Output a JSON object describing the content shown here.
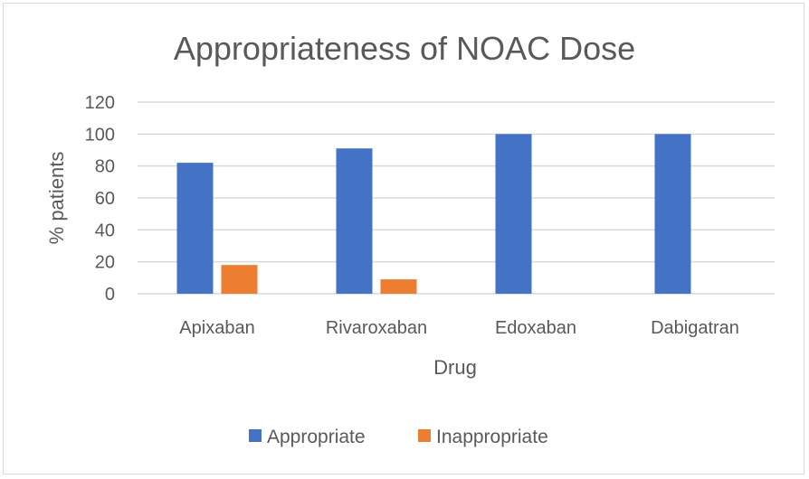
{
  "chart_data": {
    "type": "bar",
    "title": "Appropriateness of NOAC Dose",
    "xlabel": "Drug",
    "ylabel": "% patients",
    "categories": [
      "Apixaban",
      "Rivaroxaban",
      "Edoxaban",
      "Dabigatran"
    ],
    "series": [
      {
        "name": "Appropriate",
        "color": "#4472c4",
        "values": [
          82,
          91,
          100,
          100
        ]
      },
      {
        "name": "Inappropriate",
        "color": "#ed7d31",
        "values": [
          18,
          9,
          0,
          0
        ]
      }
    ],
    "ylim": [
      0,
      120
    ],
    "yticks": [
      0,
      20,
      40,
      60,
      80,
      100,
      120
    ],
    "ytick_labels": [
      "0",
      "20",
      "40",
      "60",
      "80",
      "100",
      "120"
    ],
    "grid": true,
    "legend_position": "bottom"
  }
}
